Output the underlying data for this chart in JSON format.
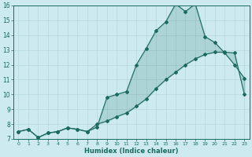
{
  "xlabel": "Humidex (Indice chaleur)",
  "background_color": "#cdeaf0",
  "line_color": "#1a6b5e",
  "grid_color": "#b8d8de",
  "xlim": [
    -0.5,
    23.5
  ],
  "ylim": [
    7,
    16
  ],
  "xticks": [
    0,
    1,
    2,
    3,
    4,
    5,
    6,
    7,
    8,
    9,
    10,
    11,
    12,
    13,
    14,
    15,
    16,
    17,
    18,
    19,
    20,
    21,
    22,
    23
  ],
  "yticks": [
    7,
    8,
    9,
    10,
    11,
    12,
    13,
    14,
    15,
    16
  ],
  "line1_x": [
    0,
    1,
    2,
    3,
    4,
    5,
    6,
    7,
    8,
    9,
    10,
    11,
    12,
    13,
    14,
    15,
    16,
    17,
    18,
    19,
    20,
    21,
    22,
    23
  ],
  "line1_y": [
    7.5,
    7.65,
    7.1,
    7.4,
    7.5,
    7.75,
    7.65,
    7.5,
    7.8,
    9.8,
    10.0,
    10.2,
    12.0,
    13.1,
    14.3,
    14.9,
    16.1,
    15.6,
    16.1,
    13.9,
    13.5,
    12.8,
    12.0,
    11.1
  ],
  "line2_x": [
    0,
    1,
    2,
    3,
    4,
    5,
    6,
    7,
    8,
    9,
    10,
    11,
    12,
    13,
    14,
    15,
    16,
    17,
    18,
    19,
    20,
    21,
    22,
    23
  ],
  "line2_y": [
    7.5,
    7.65,
    7.1,
    7.4,
    7.5,
    7.75,
    7.65,
    7.5,
    8.0,
    8.2,
    8.5,
    8.75,
    9.2,
    9.7,
    10.4,
    11.0,
    11.5,
    12.0,
    12.4,
    12.7,
    12.85,
    12.85,
    12.8,
    10.0
  ]
}
